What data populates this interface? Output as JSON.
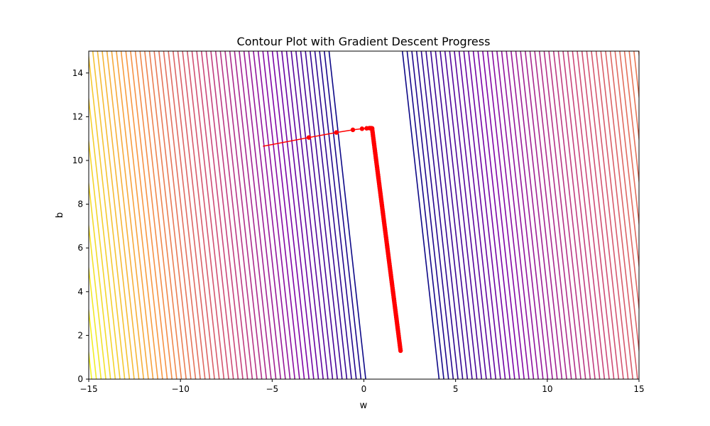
{
  "chart_data": {
    "type": "contour",
    "title": "Contour Plot with Gradient Descent Progress",
    "xlabel": "w",
    "ylabel": "b",
    "xlim": [
      -15,
      15
    ],
    "ylim": [
      0,
      15
    ],
    "xticks": [
      -15,
      -10,
      -5,
      0,
      5,
      10,
      15
    ],
    "yticks": [
      0,
      2,
      4,
      6,
      8,
      10,
      12,
      14
    ],
    "xtick_labels": [
      "−15",
      "−10",
      "−5",
      "0",
      "5",
      "10",
      "15"
    ],
    "ytick_labels": [
      "0",
      "2",
      "4",
      "6",
      "8",
      "10",
      "12",
      "14"
    ],
    "grid": false,
    "colormap": "plasma",
    "contours": {
      "line_slope_dw_db": -0.135,
      "center_w_at_b0": 2.1,
      "center_w_at_b15": 0.1,
      "level_count": 60,
      "min_level_abs_offset": 2.0,
      "max_level_abs_offset": 17.2
    },
    "descent_path": {
      "color": "#ff0000",
      "marker_color": "#ff0000",
      "phase1": [
        {
          "w": -5.5,
          "b": 10.65
        },
        {
          "w": -3.0,
          "b": 11.05
        },
        {
          "w": -1.5,
          "b": 11.28
        },
        {
          "w": -0.6,
          "b": 11.4
        },
        {
          "w": -0.1,
          "b": 11.45
        },
        {
          "w": 0.15,
          "b": 11.47
        },
        {
          "w": 0.3,
          "b": 11.48
        },
        {
          "w": 0.38,
          "b": 11.48
        },
        {
          "w": 0.45,
          "b": 11.47
        }
      ],
      "phase2_start": {
        "w": 0.45,
        "b": 11.45
      },
      "phase2_end": {
        "w": 2.0,
        "b": 1.3
      },
      "phase2_points": 120
    }
  }
}
